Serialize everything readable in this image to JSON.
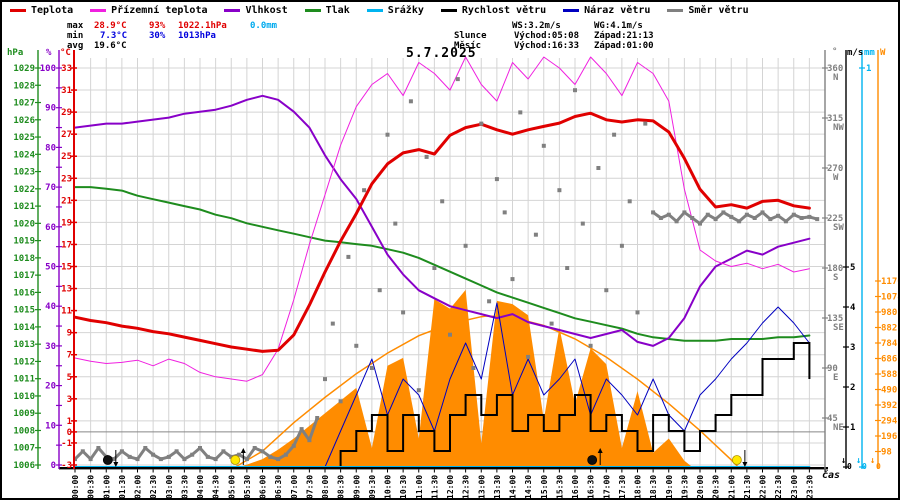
{
  "date": "5.7.2025",
  "time_axis_label": "čas",
  "legend": {
    "items": [
      {
        "label": "Teplota",
        "color": "#e00000"
      },
      {
        "label": "Přízemní teplota",
        "color": "#f020e0"
      },
      {
        "label": "Vlhkost",
        "color": "#8800c8"
      },
      {
        "label": "Tlak",
        "color": "#1e8c1e"
      },
      {
        "label": "Srážky",
        "color": "#00b4f0"
      },
      {
        "label": "Rychlost větru",
        "color": "#000000"
      },
      {
        "label": "Náraz větru",
        "color": "#0000c0"
      },
      {
        "label": "Směr větru",
        "color": "#808080"
      }
    ]
  },
  "stats": {
    "max_label": "max",
    "max_temp": "28.9°C",
    "max_hum": "93%",
    "max_pres": "1022.1hPa",
    "max_rain": "0.0mm",
    "min_label": "min",
    "min_temp": "7.3°C",
    "min_hum": "30%",
    "min_pres": "1013hPa",
    "avg_label": "avg",
    "avg_temp": "19.6°C",
    "ws": "WS:3.2m/s",
    "wg": "WG:4.1m/s",
    "sun_label": "Slunce",
    "sun_rise": "Východ:05:08",
    "sun_set": "Západ:21:13",
    "moon_label": "Měsíc",
    "moon_rise": "Východ:16:33",
    "moon_set": "Západ:01:00"
  },
  "colors": {
    "temp": "#e00000",
    "ground": "#f020e0",
    "humidity": "#8800c8",
    "pressure": "#1e8c1e",
    "rain": "#00b4f0",
    "wind_speed": "#000000",
    "wind_gust": "#0000c0",
    "wind_dir": "#808080",
    "solar": "#ff8c00",
    "sun_marker": "#ffe800",
    "moon_marker": "#101010",
    "grid": "#d4d4d4",
    "zero_line": "#888888",
    "stat_max": "#e00000",
    "stat_min": "#0000dd",
    "stat_rain": "#00aaee"
  },
  "axes": {
    "headers": {
      "hpa": "hPa",
      "pct": "%",
      "c": "°C",
      "dir": "°",
      "ms": "m/s",
      "mm": "mm",
      "w": "W"
    },
    "hpa_ticks": [
      1029,
      1028,
      1027,
      1026,
      1025,
      1024,
      1023,
      1022,
      1021,
      1020,
      1019,
      1018,
      1017,
      1016,
      1015,
      1014,
      1013,
      1012,
      1011,
      1010,
      1009,
      1008,
      1007,
      1006
    ],
    "pct_ticks": [
      100,
      90,
      80,
      70,
      60,
      50,
      40,
      30,
      20,
      10,
      0
    ],
    "c_ticks": [
      33,
      31,
      29,
      27,
      25,
      23,
      21,
      19,
      17,
      15,
      13,
      11,
      9,
      7,
      5,
      3,
      1,
      0,
      -1,
      -3
    ],
    "dir_ticks": [
      [
        360,
        "N"
      ],
      [
        315,
        "NW"
      ],
      [
        270,
        "W"
      ],
      [
        225,
        "SW"
      ],
      [
        180,
        "S"
      ],
      [
        135,
        "SE"
      ],
      [
        90,
        "E"
      ],
      [
        45,
        "NE"
      ]
    ],
    "ms_ticks": [
      5,
      4,
      3,
      2,
      1
    ],
    "mm_ticks": [
      1
    ],
    "w_ticks": [
      1176,
      1078,
      980,
      882,
      784,
      686,
      588,
      490,
      392,
      294,
      196,
      98
    ],
    "zero_end_label": "0"
  },
  "time_labels": [
    "00:00",
    "00:30",
    "01:00",
    "01:30",
    "02:00",
    "02:30",
    "03:00",
    "03:30",
    "04:00",
    "04:30",
    "05:00",
    "05:30",
    "06:00",
    "06:30",
    "07:00",
    "07:30",
    "08:00",
    "08:30",
    "09:00",
    "09:30",
    "10:00",
    "10:30",
    "11:00",
    "11:30",
    "12:00",
    "12:30",
    "13:00",
    "13:30",
    "14:00",
    "14:30",
    "15:00",
    "15:30",
    "16:00",
    "16:30",
    "17:00",
    "17:30",
    "18:00",
    "18:30",
    "19:00",
    "19:30",
    "20:00",
    "20:30",
    "21:00",
    "21:30",
    "22:00",
    "22:30",
    "23:00",
    "23:30"
  ],
  "chart_data": {
    "type": "line",
    "title": "5.7.2025",
    "x_axis": {
      "unit": "hours",
      "range": [
        0,
        24
      ],
      "tick_interval_minutes": 30
    },
    "y_axes": {
      "c": {
        "label": "°C",
        "range": [
          -3.2,
          33.9
        ]
      },
      "hpa": {
        "label": "hPa",
        "range": [
          1005.9,
          1029.6
        ]
      },
      "pct": {
        "label": "%",
        "range": [
          0,
          100.5
        ]
      },
      "dir": {
        "label": "°",
        "range": [
          0,
          360
        ]
      },
      "ms": {
        "label": "m/s",
        "range": [
          0,
          10.2
        ]
      },
      "mm": {
        "label": "mm",
        "range": [
          0,
          1
        ]
      },
      "w": {
        "label": "W",
        "range": [
          0,
          2585
        ]
      }
    },
    "series": [
      {
        "name": "teplota",
        "axis": "c",
        "style": "line",
        "width": 3,
        "t0": 0,
        "dt": 0.5,
        "values": [
          10.4,
          10.1,
          9.9,
          9.6,
          9.4,
          9.1,
          8.9,
          8.6,
          8.3,
          8.0,
          7.7,
          7.5,
          7.3,
          7.4,
          8.8,
          11.5,
          14.5,
          17.3,
          19.8,
          22.5,
          24.3,
          25.3,
          25.6,
          25.2,
          26.9,
          27.6,
          27.9,
          27.4,
          27.0,
          27.4,
          27.7,
          28.0,
          28.6,
          28.9,
          28.3,
          28.1,
          28.3,
          28.2,
          27.2,
          24.8,
          22.0,
          20.4,
          20.6,
          20.3,
          20.9,
          21.0,
          20.5,
          20.3
        ]
      },
      {
        "name": "prizemni-teplota",
        "axis": "c",
        "style": "line",
        "width": 1,
        "t0": 0,
        "dt": 0.5,
        "values": [
          6.7,
          6.4,
          6.2,
          6.3,
          6.5,
          6.0,
          6.6,
          6.2,
          5.4,
          5.0,
          4.8,
          4.6,
          5.2,
          7.5,
          12.0,
          17.0,
          21.5,
          26.0,
          29.5,
          31.5,
          32.5,
          30.5,
          33.5,
          32.5,
          31.0,
          34.0,
          31.5,
          30.0,
          33.5,
          32.0,
          34.0,
          33.0,
          31.5,
          34.0,
          32.5,
          30.5,
          33.5,
          32.5,
          30.0,
          22.0,
          16.5,
          15.5,
          15.0,
          15.3,
          14.8,
          15.2,
          14.5,
          14.8
        ]
      },
      {
        "name": "vlhkost",
        "axis": "pct",
        "style": "line",
        "width": 2,
        "t0": 0,
        "dt": 0.5,
        "values": [
          85,
          85.5,
          86,
          86,
          86.5,
          87,
          87.5,
          88.5,
          89,
          89.5,
          90.5,
          92,
          93,
          92,
          89,
          85,
          78,
          72,
          67,
          60,
          53,
          48,
          44,
          42,
          40,
          39,
          38,
          37,
          38,
          36,
          35,
          34,
          33,
          32,
          33,
          34,
          31,
          30,
          32,
          37,
          45,
          50,
          52,
          54,
          53,
          55,
          56,
          57
        ]
      },
      {
        "name": "tlak",
        "axis": "hpa",
        "style": "line",
        "width": 2,
        "t0": 0,
        "dt": 0.5,
        "values": [
          1022.1,
          1022.1,
          1022.0,
          1021.9,
          1021.6,
          1021.4,
          1021.2,
          1021.0,
          1020.8,
          1020.5,
          1020.3,
          1020.0,
          1019.8,
          1019.6,
          1019.4,
          1019.2,
          1019.0,
          1018.9,
          1018.8,
          1018.7,
          1018.5,
          1018.3,
          1018.0,
          1017.6,
          1017.2,
          1016.8,
          1016.4,
          1016.0,
          1015.7,
          1015.4,
          1015.1,
          1014.8,
          1014.5,
          1014.3,
          1014.1,
          1013.9,
          1013.6,
          1013.4,
          1013.3,
          1013.2,
          1013.2,
          1013.2,
          1013.3,
          1013.3,
          1013.3,
          1013.4,
          1013.4,
          1013.5
        ]
      },
      {
        "name": "srazky",
        "axis": "mm",
        "style": "line",
        "width": 2,
        "t0": 0,
        "dt": 0.5,
        "values": [
          0,
          0,
          0,
          0,
          0,
          0,
          0,
          0,
          0,
          0,
          0,
          0,
          0,
          0,
          0,
          0,
          0,
          0,
          0,
          0,
          0,
          0,
          0,
          0,
          0,
          0,
          0,
          0,
          0,
          0,
          0,
          0,
          0,
          0,
          0,
          0,
          0,
          0,
          0,
          0,
          0,
          0,
          0,
          0,
          0,
          0,
          0,
          0
        ]
      },
      {
        "name": "rychlost-vetru",
        "axis": "ms",
        "style": "step",
        "width": 2,
        "t0": 0,
        "dt": 0.5,
        "values": [
          0,
          0,
          0,
          0,
          0,
          0,
          0,
          0,
          0,
          0,
          0,
          0,
          0,
          0,
          0,
          0,
          0,
          0.4,
          0.9,
          1.3,
          0.4,
          1.3,
          0.9,
          0.4,
          1.3,
          1.8,
          1.3,
          1.8,
          0.9,
          1.3,
          0.9,
          1.3,
          1.8,
          0.9,
          1.3,
          0.9,
          0.4,
          1.3,
          0.9,
          0.4,
          0.9,
          1.3,
          1.8,
          1.8,
          2.7,
          2.7,
          3.1,
          2.2
        ]
      },
      {
        "name": "naraz-vetru",
        "axis": "ms",
        "style": "line",
        "width": 1,
        "t0": 0,
        "dt": 0.5,
        "values": [
          0,
          0,
          0,
          0,
          0,
          0,
          0,
          0,
          0,
          0,
          0,
          0,
          0,
          0,
          0,
          0,
          0,
          0.9,
          1.8,
          2.7,
          1.3,
          2.2,
          1.8,
          0.9,
          2.2,
          3.1,
          2.2,
          4.1,
          1.8,
          2.7,
          1.8,
          2.2,
          2.7,
          1.3,
          2.2,
          1.8,
          1.3,
          2.2,
          1.3,
          0.9,
          1.8,
          2.2,
          2.7,
          3.1,
          3.6,
          4.0,
          3.6,
          3.1
        ]
      },
      {
        "name": "smer-vetru",
        "axis": "dir",
        "style": "scatter-step",
        "width": 3,
        "t0": 0,
        "dt": 0.25,
        "values": [
          8,
          15,
          8,
          18,
          10,
          8,
          15,
          10,
          8,
          18,
          12,
          8,
          10,
          15,
          8,
          12,
          18,
          10,
          8,
          15,
          10,
          12,
          8,
          18,
          15,
          10,
          8,
          12,
          20,
          35,
          25,
          45,
          80,
          130,
          60,
          190,
          110,
          250,
          90,
          160,
          300,
          220,
          140,
          330,
          70,
          280,
          180,
          240,
          120,
          350,
          200,
          90,
          310,
          150,
          260,
          230,
          170,
          320,
          100,
          210,
          290,
          130,
          250,
          180,
          340,
          220,
          110,
          270,
          160,
          300,
          200,
          240,
          140,
          310,
          230,
          225,
          228,
          222,
          230,
          225,
          220,
          228,
          224,
          230,
          226,
          222,
          228,
          225,
          230,
          224,
          227,
          222,
          228,
          225,
          226,
          224
        ]
      },
      {
        "name": "solar-radiation",
        "axis": "w",
        "style": "area",
        "t0": 5.5,
        "dt": 0.5,
        "values": [
          15,
          50,
          110,
          180,
          260,
          340,
          420,
          500,
          120,
          640,
          690,
          180,
          1060,
          1000,
          1120,
          150,
          1050,
          1030,
          960,
          300,
          880,
          400,
          750,
          650,
          120,
          480,
          90,
          180,
          40
        ]
      },
      {
        "name": "solar-clear-sky",
        "axis": "w",
        "style": "points-line",
        "width": 1.5,
        "points": [
          [
            5.13,
            0
          ],
          [
            6,
            100
          ],
          [
            7,
            280
          ],
          [
            8,
            440
          ],
          [
            9,
            590
          ],
          [
            10,
            720
          ],
          [
            11,
            830
          ],
          [
            12,
            905
          ],
          [
            13,
            950
          ],
          [
            13.17,
            955
          ],
          [
            14,
            945
          ],
          [
            15,
            895
          ],
          [
            16,
            810
          ],
          [
            17,
            695
          ],
          [
            18,
            555
          ],
          [
            19,
            400
          ],
          [
            20,
            230
          ],
          [
            21,
            45
          ],
          [
            21.22,
            0
          ]
        ]
      }
    ],
    "events": [
      {
        "name": "moon-set",
        "time": "01:00",
        "t": 1.05,
        "type": "moon",
        "dir": "down"
      },
      {
        "name": "sun-rise",
        "time": "05:08",
        "t": 5.13,
        "type": "sun",
        "dir": "up"
      },
      {
        "name": "moon-rise",
        "time": "16:33",
        "t": 16.55,
        "type": "moon",
        "dir": "up"
      },
      {
        "name": "sun-set",
        "time": "21:13",
        "t": 21.18,
        "type": "sun",
        "dir": "down"
      }
    ]
  }
}
